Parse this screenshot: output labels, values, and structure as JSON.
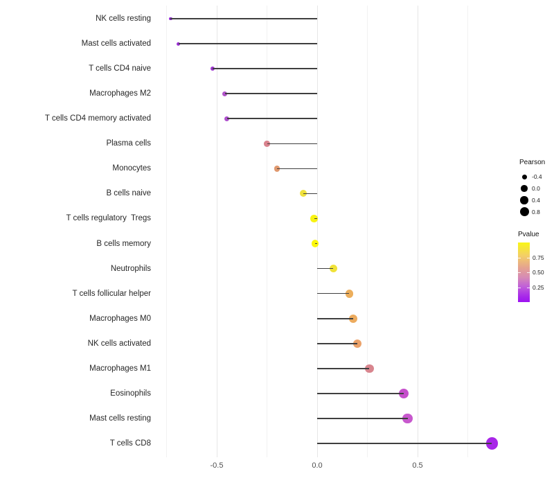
{
  "chart_data": {
    "type": "lollipop",
    "title": "",
    "xlabel": "",
    "ylabel": "",
    "grid": "vertical-only",
    "x_axis": {
      "tick_values": [
        -0.5,
        0.0,
        0.5
      ],
      "tick_labels": [
        "-0.5",
        "0.0",
        "0.5"
      ],
      "minor_values": [
        -0.75,
        -0.25,
        0.25,
        0.75
      ],
      "xlim": [
        -0.79,
        0.95
      ]
    },
    "rows": [
      {
        "label": "NK cells resting",
        "pearson": -0.73,
        "pvalue": 0.07,
        "color": "#9227d8"
      },
      {
        "label": "Mast cells activated",
        "pearson": -0.69,
        "pvalue": 0.09,
        "color": "#9b2fd4"
      },
      {
        "label": "T cells CD4 naive",
        "pearson": -0.52,
        "pvalue": 0.12,
        "color": "#9c35cf"
      },
      {
        "label": "Macrophages M2",
        "pearson": -0.46,
        "pvalue": 0.2,
        "color": "#b054c9"
      },
      {
        "label": "T cells CD4 memory activated",
        "pearson": -0.45,
        "pvalue": 0.19,
        "color": "#ae4fcd"
      },
      {
        "label": "Plasma cells",
        "pearson": -0.25,
        "pvalue": 0.52,
        "color": "#d9838d"
      },
      {
        "label": "Monocytes",
        "pearson": -0.2,
        "pvalue": 0.62,
        "color": "#e0986e"
      },
      {
        "label": "B cells naive",
        "pearson": -0.07,
        "pvalue": 0.88,
        "color": "#efe13d"
      },
      {
        "label": "T cells regulatory  Tregs",
        "pearson": -0.015,
        "pvalue": 0.97,
        "color": "#f8f312"
      },
      {
        "label": "B cells memory",
        "pearson": -0.01,
        "pvalue": 0.98,
        "color": "#fbf70a"
      },
      {
        "label": "Neutrophils",
        "pearson": 0.08,
        "pvalue": 0.9,
        "color": "#f0e238"
      },
      {
        "label": "T cells follicular helper",
        "pearson": 0.16,
        "pvalue": 0.72,
        "color": "#ecae5c"
      },
      {
        "label": "Macrophages M0",
        "pearson": 0.18,
        "pvalue": 0.71,
        "color": "#ecab5e"
      },
      {
        "label": "NK cells activated",
        "pearson": 0.2,
        "pvalue": 0.66,
        "color": "#eba26a"
      },
      {
        "label": "Macrophages M1",
        "pearson": 0.26,
        "pvalue": 0.52,
        "color": "#d8858e"
      },
      {
        "label": "Eosinophils",
        "pearson": 0.43,
        "pvalue": 0.22,
        "color": "#c54ecb"
      },
      {
        "label": "Mast cells resting",
        "pearson": 0.45,
        "pvalue": 0.24,
        "color": "#c758cd"
      },
      {
        "label": "T cells CD8",
        "pearson": 0.87,
        "pvalue": 0.03,
        "color": "#a826e8"
      }
    ],
    "segment_color": "#3f3f3f",
    "legend_size": {
      "title": "Pearson",
      "dot_color": "#000000",
      "entries": [
        {
          "label": "-0.4",
          "value": -0.4,
          "diameter": 7
        },
        {
          "label": "0.0",
          "value": 0.0,
          "diameter": 9.5
        },
        {
          "label": "0.4",
          "value": 0.4,
          "diameter": 11.5
        },
        {
          "label": "0.8",
          "value": 0.8,
          "diameter": 13
        }
      ]
    },
    "legend_color": {
      "title": "Pvalue",
      "range": [
        0,
        1
      ],
      "tick_entries": [
        {
          "label": "0.75",
          "value": 0.75
        },
        {
          "label": "0.50",
          "value": 0.5
        },
        {
          "label": "0.25",
          "value": 0.25
        }
      ],
      "gradient_stops": [
        {
          "pos": 0.0,
          "color": "#f9f616"
        },
        {
          "pos": 0.22,
          "color": "#f3cf67"
        },
        {
          "pos": 0.42,
          "color": "#e5a38f"
        },
        {
          "pos": 0.58,
          "color": "#d78cb4"
        },
        {
          "pos": 0.74,
          "color": "#c05fd9"
        },
        {
          "pos": 0.9,
          "color": "#a82ae9"
        },
        {
          "pos": 1.0,
          "color": "#9d12f1"
        }
      ]
    }
  }
}
